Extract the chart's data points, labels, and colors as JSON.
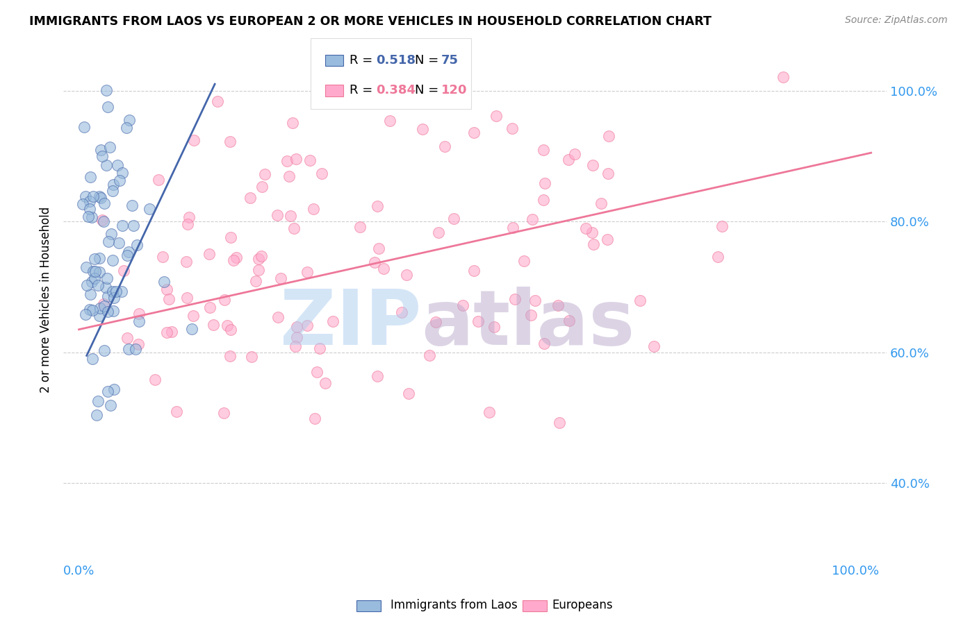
{
  "title": "IMMIGRANTS FROM LAOS VS EUROPEAN 2 OR MORE VEHICLES IN HOUSEHOLD CORRELATION CHART",
  "source": "Source: ZipAtlas.com",
  "ylabel": "2 or more Vehicles in Household",
  "legend_label1": "Immigrants from Laos",
  "legend_label2": "Europeans",
  "R1": 0.518,
  "N1": 75,
  "R2": 0.384,
  "N2": 120,
  "color_blue": "#99BBDD",
  "color_pink": "#FFAACC",
  "color_blue_line": "#4466AA",
  "color_pink_line": "#EE7799",
  "xlim": [
    -0.02,
    1.04
  ],
  "ylim": [
    0.28,
    1.08
  ],
  "yticks": [
    0.4,
    0.6,
    0.8,
    1.0
  ],
  "ytick_labels": [
    "40.0%",
    "60.0%",
    "80.0%",
    "100.0%"
  ],
  "xtick_left": "0.0%",
  "xtick_right": "100.0%",
  "seed": 42
}
